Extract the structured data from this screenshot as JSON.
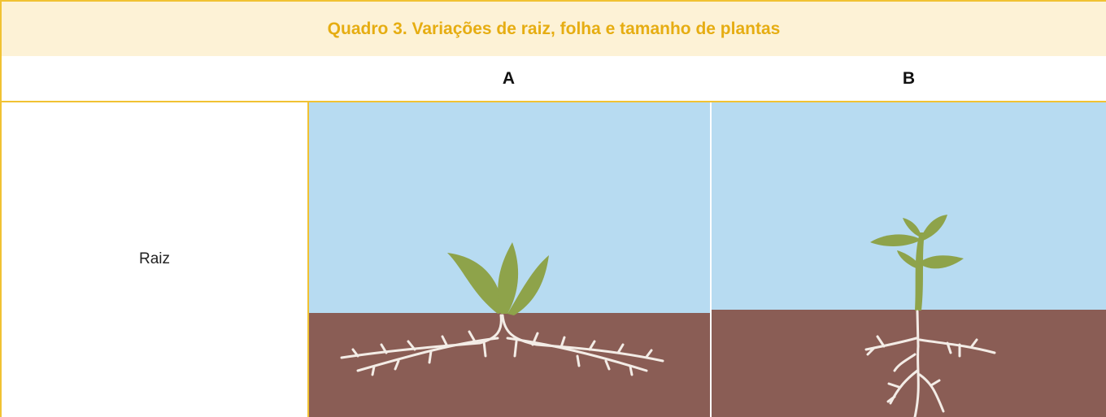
{
  "table": {
    "title": "Quadro 3. Variações de raiz, folha e tamanho de plantas",
    "header": [
      "A",
      "B"
    ],
    "rows": [
      {
        "label": "Raiz"
      }
    ]
  }
}
